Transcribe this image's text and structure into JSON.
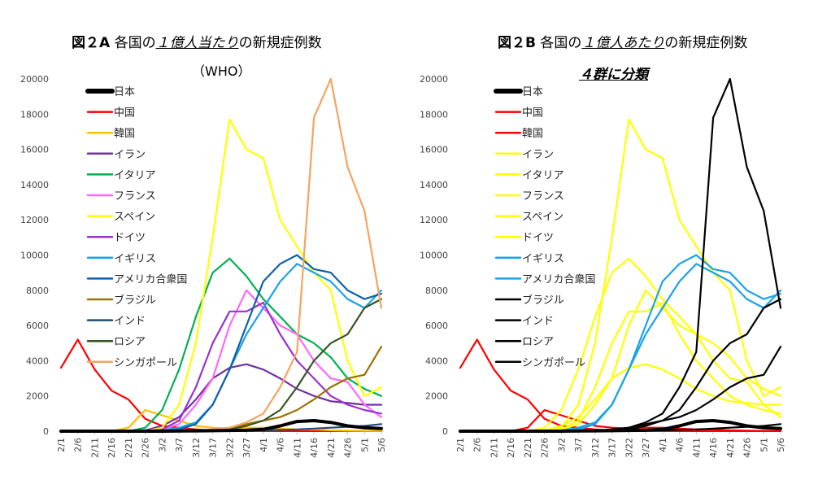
{
  "panels": [
    {
      "title": {
        "label": "図２A",
        "pre": "各国の",
        "em": "１億人当たり",
        "post": "の新規症例数"
      },
      "subtitle": "（WHO）"
    },
    {
      "title": {
        "label": "図２B",
        "pre": "各国の",
        "em": "１億人あたり",
        "post": "の新規症例数"
      },
      "subtitle": "４群に分類"
    }
  ],
  "chart_data": [
    {
      "type": "line",
      "title": "図２A 各国の１億人当たりの新規症例数（WHO）",
      "x": [
        "2/1",
        "2/6",
        "2/11",
        "2/16",
        "2/21",
        "2/26",
        "3/2",
        "3/7",
        "3/12",
        "3/17",
        "3/22",
        "3/27",
        "4/1",
        "4/6",
        "4/11",
        "4/16",
        "4/21",
        "4/26",
        "5/1",
        "5/6"
      ],
      "ylim": [
        0,
        20000
      ],
      "yticks": [
        "0",
        "2000",
        "4000",
        "6000",
        "8000",
        "10000",
        "12000",
        "14000",
        "16000",
        "18000",
        "20000"
      ],
      "legend_placement": "top-left",
      "series": [
        {
          "name": "日本",
          "color": "#000000",
          "values": [
            0,
            0,
            0,
            0,
            0,
            0,
            0,
            10,
            20,
            30,
            40,
            50,
            100,
            300,
            550,
            600,
            500,
            300,
            200,
            150
          ]
        },
        {
          "name": "中国",
          "color": "#ff0000",
          "values": [
            3600,
            5200,
            3500,
            2300,
            1800,
            700,
            300,
            200,
            100,
            50,
            20,
            10,
            5,
            5,
            5,
            5,
            5,
            5,
            5,
            5
          ]
        },
        {
          "name": "韓国",
          "color": "#ffc000",
          "values": [
            0,
            0,
            0,
            0,
            200,
            1200,
            900,
            600,
            300,
            200,
            150,
            200,
            200,
            150,
            100,
            100,
            50,
            30,
            20,
            10
          ]
        },
        {
          "name": "イラン",
          "color": "#7030a0",
          "values": [
            0,
            0,
            0,
            0,
            0,
            50,
            300,
            800,
            1800,
            3000,
            3600,
            3800,
            3500,
            3000,
            2400,
            2000,
            1700,
            1600,
            1500,
            1500
          ]
        },
        {
          "name": "イタリア",
          "color": "#00b050",
          "values": [
            0,
            0,
            0,
            0,
            0,
            200,
            1200,
            3500,
            6500,
            9000,
            9800,
            8800,
            7500,
            6500,
            5500,
            5000,
            4200,
            3000,
            2400,
            2000
          ]
        },
        {
          "name": "フランス",
          "color": "#ff66ff",
          "values": [
            0,
            0,
            0,
            0,
            0,
            0,
            100,
            400,
            1500,
            3000,
            6000,
            8000,
            7000,
            6000,
            5500,
            4000,
            3000,
            2800,
            1500,
            800
          ]
        },
        {
          "name": "スペイン",
          "color": "#ffff00",
          "values": [
            0,
            0,
            0,
            0,
            0,
            0,
            200,
            1500,
            5000,
            11000,
            17700,
            16000,
            15500,
            12000,
            10500,
            9000,
            8000,
            4000,
            2000,
            2500
          ]
        },
        {
          "name": "ドイツ",
          "color": "#9933cc",
          "values": [
            0,
            0,
            0,
            0,
            0,
            0,
            100,
            600,
            2500,
            5000,
            6800,
            6800,
            7300,
            5500,
            4000,
            3000,
            2000,
            1500,
            1200,
            1000
          ]
        },
        {
          "name": "イギリス",
          "color": "#1aa3e8",
          "values": [
            0,
            0,
            0,
            0,
            0,
            0,
            50,
            200,
            500,
            1500,
            3500,
            5500,
            7000,
            8500,
            9500,
            9000,
            8500,
            7500,
            7000,
            8000
          ]
        },
        {
          "name": "アメリカ合衆国",
          "color": "#0f5fa8",
          "values": [
            0,
            0,
            0,
            0,
            0,
            0,
            30,
            100,
            400,
            1500,
            3500,
            6000,
            8500,
            9500,
            10000,
            9200,
            9000,
            8000,
            7500,
            7800
          ]
        },
        {
          "name": "ブラジル",
          "color": "#997300",
          "values": [
            0,
            0,
            0,
            0,
            0,
            0,
            0,
            0,
            30,
            100,
            200,
            400,
            600,
            800,
            1200,
            1800,
            2500,
            3000,
            3200,
            4800
          ]
        },
        {
          "name": "インド",
          "color": "#1f4e79",
          "values": [
            0,
            0,
            0,
            0,
            0,
            0,
            0,
            0,
            0,
            10,
            20,
            30,
            50,
            80,
            100,
            150,
            200,
            250,
            300,
            400
          ]
        },
        {
          "name": "ロシア",
          "color": "#375623",
          "values": [
            0,
            0,
            0,
            0,
            0,
            0,
            0,
            0,
            20,
            50,
            100,
            300,
            600,
            1200,
            2500,
            4000,
            5000,
            5500,
            7000,
            7500
          ]
        },
        {
          "name": "シンガポール",
          "color": "#f4a460",
          "values": [
            0,
            0,
            0,
            0,
            0,
            0,
            0,
            0,
            0,
            100,
            200,
            500,
            1000,
            2500,
            4500,
            17800,
            20000,
            15000,
            12500,
            7000
          ]
        }
      ]
    },
    {
      "type": "line",
      "title": "図２B 各国の１億人あたりの新規症例数 ４群に分類",
      "x": [
        "2/1",
        "2/6",
        "2/11",
        "2/16",
        "2/21",
        "2/26",
        "3/2",
        "3/7",
        "3/12",
        "3/17",
        "3/22",
        "3/27",
        "4/1",
        "4/6",
        "4/11",
        "4/16",
        "4/21",
        "4/26",
        "5/1",
        "5/6"
      ],
      "ylim": [
        0,
        20000
      ],
      "yticks": [
        "0",
        "2000",
        "4000",
        "6000",
        "8000",
        "10000",
        "12000",
        "14000",
        "16000",
        "18000",
        "20000"
      ],
      "legend_placement": "top-left",
      "series": [
        {
          "name": "日本",
          "color": "#000000",
          "values": [
            0,
            0,
            0,
            0,
            0,
            0,
            0,
            10,
            20,
            30,
            40,
            50,
            100,
            300,
            550,
            600,
            500,
            300,
            200,
            150
          ]
        },
        {
          "name": "中国",
          "color": "#ff0000",
          "values": [
            3600,
            5200,
            3500,
            2300,
            1800,
            700,
            300,
            200,
            100,
            50,
            20,
            10,
            5,
            5,
            5,
            5,
            5,
            5,
            5,
            5
          ]
        },
        {
          "name": "韓国",
          "color": "#ff0000",
          "values": [
            0,
            0,
            0,
            0,
            200,
            1200,
            900,
            600,
            300,
            200,
            150,
            200,
            200,
            150,
            100,
            100,
            50,
            30,
            20,
            10
          ]
        },
        {
          "name": "イラン",
          "color": "#ffff00",
          "values": [
            0,
            0,
            0,
            0,
            0,
            50,
            300,
            800,
            1800,
            3000,
            3600,
            3800,
            3500,
            3000,
            2400,
            2000,
            1700,
            1600,
            1500,
            1500
          ]
        },
        {
          "name": "イタリア",
          "color": "#ffff00",
          "values": [
            0,
            0,
            0,
            0,
            0,
            200,
            1200,
            3500,
            6500,
            9000,
            9800,
            8800,
            7500,
            6500,
            5500,
            5000,
            4200,
            3000,
            2400,
            2000
          ]
        },
        {
          "name": "フランス",
          "color": "#ffff00",
          "values": [
            0,
            0,
            0,
            0,
            0,
            0,
            100,
            400,
            1500,
            3000,
            6000,
            8000,
            7000,
            6000,
            5500,
            4000,
            3000,
            2800,
            1500,
            800
          ]
        },
        {
          "name": "スペイン",
          "color": "#ffff00",
          "values": [
            0,
            0,
            0,
            0,
            0,
            0,
            200,
            1500,
            5000,
            11000,
            17700,
            16000,
            15500,
            12000,
            10500,
            9000,
            8000,
            4000,
            2000,
            2500
          ]
        },
        {
          "name": "ドイツ",
          "color": "#ffff00",
          "values": [
            0,
            0,
            0,
            0,
            0,
            0,
            100,
            600,
            2500,
            5000,
            6800,
            6800,
            7300,
            5500,
            4000,
            3000,
            2000,
            1500,
            1200,
            1000
          ]
        },
        {
          "name": "イギリス",
          "color": "#1aa3e8",
          "values": [
            0,
            0,
            0,
            0,
            0,
            0,
            50,
            200,
            500,
            1500,
            3500,
            5500,
            7000,
            8500,
            9500,
            9000,
            8500,
            7500,
            7000,
            8000
          ]
        },
        {
          "name": "アメリカ合衆国",
          "color": "#1aa3e8",
          "values": [
            0,
            0,
            0,
            0,
            0,
            0,
            30,
            100,
            400,
            1500,
            3500,
            6000,
            8500,
            9500,
            10000,
            9200,
            9000,
            8000,
            7500,
            7800
          ]
        },
        {
          "name": "ブラジル",
          "color": "#000000",
          "values": [
            0,
            0,
            0,
            0,
            0,
            0,
            0,
            0,
            30,
            100,
            200,
            400,
            600,
            800,
            1200,
            1800,
            2500,
            3000,
            3200,
            4800
          ]
        },
        {
          "name": "インド",
          "color": "#000000",
          "values": [
            0,
            0,
            0,
            0,
            0,
            0,
            0,
            0,
            0,
            10,
            20,
            30,
            50,
            80,
            100,
            150,
            200,
            250,
            300,
            400
          ]
        },
        {
          "name": "ロシア",
          "color": "#000000",
          "values": [
            0,
            0,
            0,
            0,
            0,
            0,
            0,
            0,
            20,
            50,
            100,
            300,
            600,
            1200,
            2500,
            4000,
            5000,
            5500,
            7000,
            7500
          ]
        },
        {
          "name": "シンガポール",
          "color": "#000000",
          "values": [
            0,
            0,
            0,
            0,
            0,
            0,
            0,
            0,
            0,
            100,
            200,
            500,
            1000,
            2500,
            4500,
            17800,
            20000,
            15000,
            12500,
            7000
          ]
        }
      ]
    }
  ]
}
